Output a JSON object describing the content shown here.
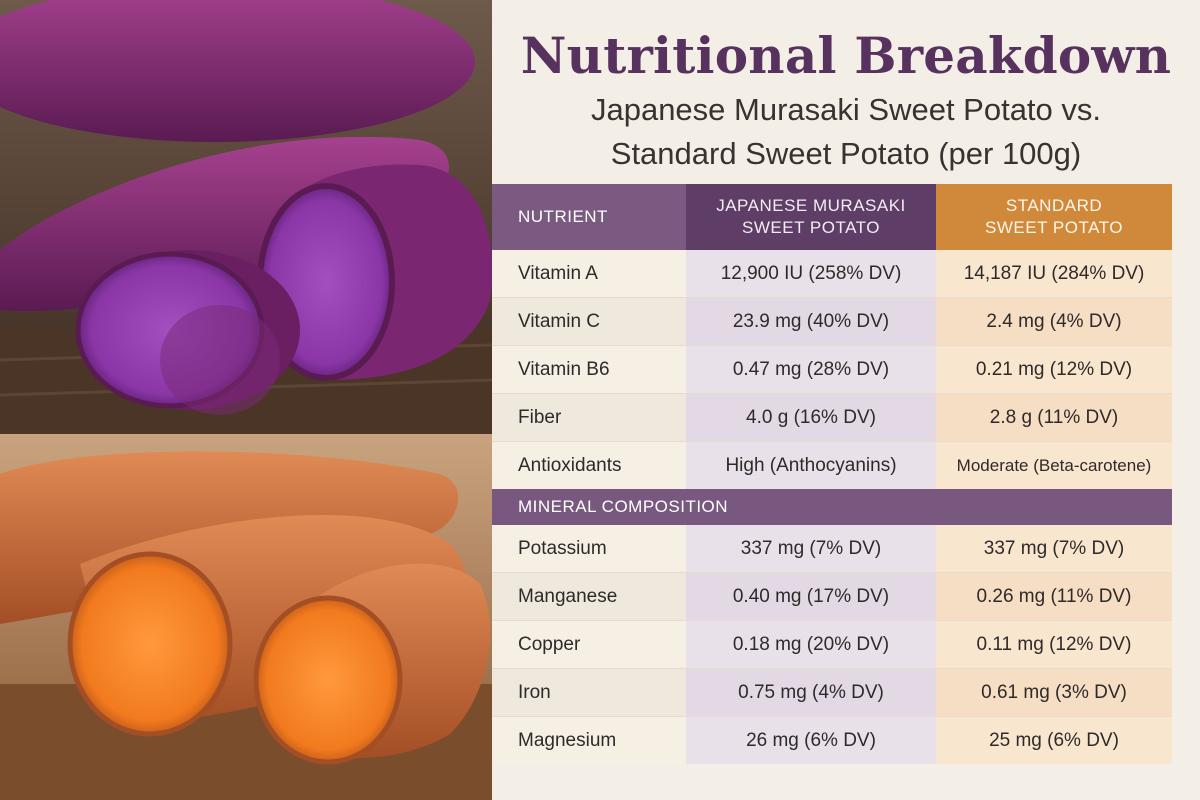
{
  "title": "Nutritional Breakdown",
  "subtitle_line1": "Japanese Murasaki Sweet Potato vs.",
  "subtitle_line2": "Standard Sweet Potato (per 100g)",
  "colors": {
    "title": "#57325e",
    "purple_header": "#5e3e66",
    "orange_header": "#d0893b",
    "section_bar": "#79587f"
  },
  "table": {
    "header": {
      "nutrient": "NUTRIENT",
      "col1_line1": "JAPANESE MURASAKI",
      "col1_line2": "SWEET POTATO",
      "col2_line1": "STANDARD",
      "col2_line2": "SWEET POTATO"
    },
    "vitamins": [
      {
        "name": "Vitamin A",
        "murasaki": "12,900 IU (258% DV)",
        "standard": "14,187 IU (284% DV)"
      },
      {
        "name": "Vitamin C",
        "murasaki": "23.9 mg (40% DV)",
        "standard": "2.4 mg (4% DV)"
      },
      {
        "name": "Vitamin B6",
        "murasaki": "0.47 mg (28% DV)",
        "standard": "0.21 mg (12% DV)"
      },
      {
        "name": "Fiber",
        "murasaki": "4.0 g (16% DV)",
        "standard": "2.8 g (11% DV)"
      },
      {
        "name": "Antioxidants",
        "murasaki": "High (Anthocyanins)",
        "standard": "Moderate (Beta-carotene)"
      }
    ],
    "section_label": "MINERAL COMPOSITION",
    "minerals": [
      {
        "name": "Potassium",
        "murasaki": "337 mg (7% DV)",
        "standard": "337 mg (7% DV)"
      },
      {
        "name": "Manganese",
        "murasaki": "0.40 mg (17% DV)",
        "standard": "0.26 mg (11% DV)"
      },
      {
        "name": "Copper",
        "murasaki": "0.18 mg (20% DV)",
        "standard": "0.11 mg (12% DV)"
      },
      {
        "name": "Iron",
        "murasaki": "0.75 mg (4% DV)",
        "standard": "0.61 mg (3% DV)"
      },
      {
        "name": "Magnesium",
        "murasaki": "26 mg (6% DV)",
        "standard": "25 mg (6% DV)"
      }
    ]
  }
}
